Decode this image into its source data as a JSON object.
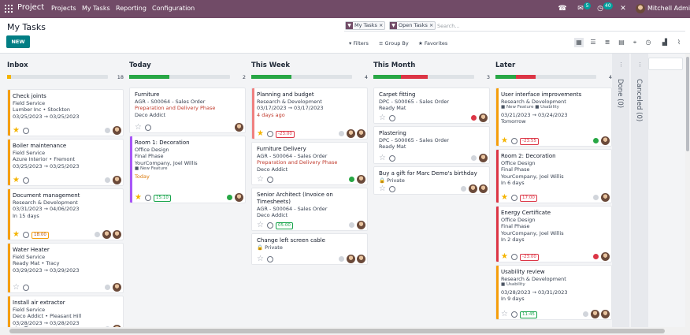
{
  "topbar": {
    "app_name": "Project",
    "menu": [
      "Projects",
      "My Tasks",
      "Reporting",
      "Configuration"
    ],
    "chat_count": "5",
    "activity_count": "40",
    "user_name": "Mitchell Admin",
    "colors": {
      "bar": "#714b67",
      "badge": "#00a09d"
    }
  },
  "control": {
    "breadcrumb": "My Tasks",
    "new_label": "NEW",
    "facets": [
      "My Tasks",
      "Open Tasks"
    ],
    "search_placeholder": "Search...",
    "filters_label": "Filters",
    "group_by_label": "Group By",
    "favorites_label": "Favorites"
  },
  "columns": [
    {
      "name": "Inbox",
      "count": "18",
      "progress": [
        {
          "color": "#f4b400",
          "fraction": 0.04
        }
      ],
      "cards": [
        {
          "accent": "#f59e0b",
          "lines": [
            [
              "Check joints",
              "b"
            ],
            [
              "Field Service",
              ""
            ],
            [
              "Lumber Inc • Stockton",
              ""
            ],
            [
              "03/25/2023 → 03/25/2023",
              ""
            ]
          ],
          "star": true,
          "dot": "#d1d5db",
          "avatars": 1
        },
        {
          "accent": "#f59e0b",
          "lines": [
            [
              "Boiler maintenance",
              "b"
            ],
            [
              "Field Service",
              ""
            ],
            [
              "Azure Interior • Fremont",
              ""
            ],
            [
              "03/25/2023 → 03/25/2023",
              ""
            ]
          ],
          "star": true,
          "dot": "#d1d5db",
          "avatars": 1
        },
        {
          "accent": "#f59e0b",
          "lines": [
            [
              "Document management",
              "b"
            ],
            [
              "Research & Development",
              ""
            ],
            [
              "03/31/2023 → 04/06/2023",
              ""
            ],
            [
              "In 15 days",
              ""
            ]
          ],
          "star": true,
          "tag": "18:00",
          "tagstyle": "o",
          "dot": "#d1d5db",
          "avatars": 2
        },
        {
          "accent": "#f59e0b",
          "lines": [
            [
              "Water Heater",
              "b"
            ],
            [
              "Field Service",
              ""
            ],
            [
              "Ready Mat • Tracy",
              ""
            ],
            [
              "03/29/2023 → 03/29/2023",
              ""
            ]
          ],
          "star": false,
          "dot": "#d1d5db",
          "avatars": 1
        },
        {
          "accent": "#f59e0b",
          "lines": [
            [
              "Install air extractor",
              "b"
            ],
            [
              "Field Service",
              ""
            ],
            [
              "Deco Addict • Pleasant Hill",
              ""
            ],
            [
              "03/28/2023 → 03/28/2023",
              ""
            ]
          ],
          "star": false,
          "dot": "#d1d5db",
          "avatars": 1
        }
      ]
    },
    {
      "name": "Today",
      "count": "2",
      "progress": [
        {
          "color": "#28a745",
          "fraction": 0.4
        }
      ],
      "cards": [
        {
          "accent": "#ffffff",
          "lines": [
            [
              "Furniture",
              "b"
            ],
            [
              "AGR - S00064 - Sales Order",
              ""
            ],
            [
              "Preparation and Delivery Phase",
              "red"
            ],
            [
              "Deco Addict",
              ""
            ]
          ],
          "star": false,
          "dot": null,
          "avatars": 1
        },
        {
          "accent": "#a855f7",
          "lines": [
            [
              "Room 1: Decoration",
              "b"
            ],
            [
              "Office Design",
              ""
            ],
            [
              "Final Phase",
              ""
            ],
            [
              "YourCompany, Joel Willis",
              ""
            ],
            [
              "■ New Feature",
              "tag"
            ],
            [
              "Today",
              "orange"
            ]
          ],
          "star": true,
          "tag": "15:10",
          "tagstyle": "g",
          "dot": "#28a745",
          "avatars": 1
        }
      ]
    },
    {
      "name": "This Week",
      "count": "4",
      "progress": [
        {
          "color": "#28a745",
          "fraction": 0.4
        }
      ],
      "cards": [
        {
          "accent": "#f08080",
          "lines": [
            [
              "Planning and budget",
              "b"
            ],
            [
              "Research & Development",
              ""
            ],
            [
              "03/17/2023 → 03/17/2023",
              ""
            ],
            [
              "4 days ago",
              "red"
            ]
          ],
          "star": true,
          "tag": "-23:00",
          "tagstyle": "",
          "dot": "#d1d5db",
          "avatars": 2
        },
        {
          "accent": "#ffffff",
          "lines": [
            [
              "Furniture Delivery",
              "b"
            ],
            [
              "AGR - S00064 - Sales Order",
              ""
            ],
            [
              "Preparation and Delivery Phase",
              "red"
            ],
            [
              "Deco Addict",
              ""
            ]
          ],
          "star": false,
          "dot": "#28a745",
          "avatars": 1
        },
        {
          "accent": "#ffffff",
          "lines": [
            [
              "Senior Architect (Invoice on",
              "b"
            ],
            [
              "Timesheets)",
              "b"
            ],
            [
              "AGR - S00064 - Sales Order",
              ""
            ],
            [
              "Deco Addict",
              ""
            ]
          ],
          "star": false,
          "tag": "05:00",
          "tagstyle": "g",
          "dot": "#d1d5db",
          "avatars": 1
        },
        {
          "accent": "#ffffff",
          "lines": [
            [
              "Change left screen cable",
              "b"
            ],
            [
              "🔒 Private",
              ""
            ]
          ],
          "star": false,
          "dot": "#d1d5db",
          "avatars": 2
        }
      ]
    },
    {
      "name": "This Month",
      "count": "3",
      "progress": [
        {
          "color": "#28a745",
          "fraction": 0.27
        },
        {
          "color": "#dc3545",
          "fraction": 0.27
        }
      ],
      "cards": [
        {
          "accent": "#ffffff",
          "lines": [
            [
              "Carpet fitting",
              "b"
            ],
            [
              "DPC - S00065 - Sales Order",
              ""
            ],
            [
              "Ready Mat",
              ""
            ]
          ],
          "star": false,
          "dot": "#dc3545",
          "avatars": 1
        },
        {
          "accent": "#ffffff",
          "lines": [
            [
              "Plastering",
              "b"
            ],
            [
              "DPC - S00065 - Sales Order",
              ""
            ],
            [
              "Ready Mat",
              ""
            ]
          ],
          "star": false,
          "dot": "#d1d5db",
          "avatars": 1
        },
        {
          "accent": "#ffffff",
          "lines": [
            [
              "Buy a gift for Marc Demo's birthday",
              "b"
            ],
            [
              "🔒 Private",
              ""
            ]
          ],
          "star": false,
          "dot": "#d1d5db",
          "avatars": 2
        }
      ]
    },
    {
      "name": "Later",
      "count": "4",
      "progress": [
        {
          "color": "#28a745",
          "fraction": 0.2
        },
        {
          "color": "#dc3545",
          "fraction": 0.2
        }
      ],
      "cards": [
        {
          "accent": "#f59e0b",
          "lines": [
            [
              "User interface improvements",
              "b"
            ],
            [
              "Research & Development",
              ""
            ],
            [
              "■ New Feature  ■ Usability",
              "tag"
            ],
            [
              "03/21/2023 → 03/24/2023",
              ""
            ],
            [
              "Tomorrow",
              ""
            ]
          ],
          "star": true,
          "tag": "-23:55",
          "tagstyle": "",
          "dot": "#28a745",
          "avatars": 1
        },
        {
          "accent": "#dc3545",
          "lines": [
            [
              "Room 2: Decoration",
              "b"
            ],
            [
              "Office Design",
              ""
            ],
            [
              "Final Phase",
              ""
            ],
            [
              "YourCompany, Joel Willis",
              ""
            ],
            [
              "In 6 days",
              ""
            ]
          ],
          "star": true,
          "tag": "17:00",
          "tagstyle": "",
          "dot": "#d1d5db",
          "avatars": 1
        },
        {
          "accent": "#dc3545",
          "lines": [
            [
              "Energy Certificate",
              "b"
            ],
            [
              "Office Design",
              ""
            ],
            [
              "Final Phase",
              ""
            ],
            [
              "YourCompany, Joel Willis",
              ""
            ],
            [
              "In 2 days",
              ""
            ]
          ],
          "star": true,
          "tag": "-23:00",
          "tagstyle": "",
          "dot": "#dc3545",
          "avatars": 1
        },
        {
          "accent": "#f59e0b",
          "lines": [
            [
              "Usability review",
              "b"
            ],
            [
              "Research & Development",
              ""
            ],
            [
              "■ Usability",
              "tag"
            ],
            [
              "03/28/2023 → 03/31/2023",
              ""
            ],
            [
              "In 9 days",
              ""
            ]
          ],
          "star": false,
          "tag": "11:45",
          "tagstyle": "g",
          "dot": "#d1d5db",
          "avatars": 2
        }
      ]
    }
  ],
  "folded": [
    "Done (0)",
    "Canceled (0)"
  ]
}
